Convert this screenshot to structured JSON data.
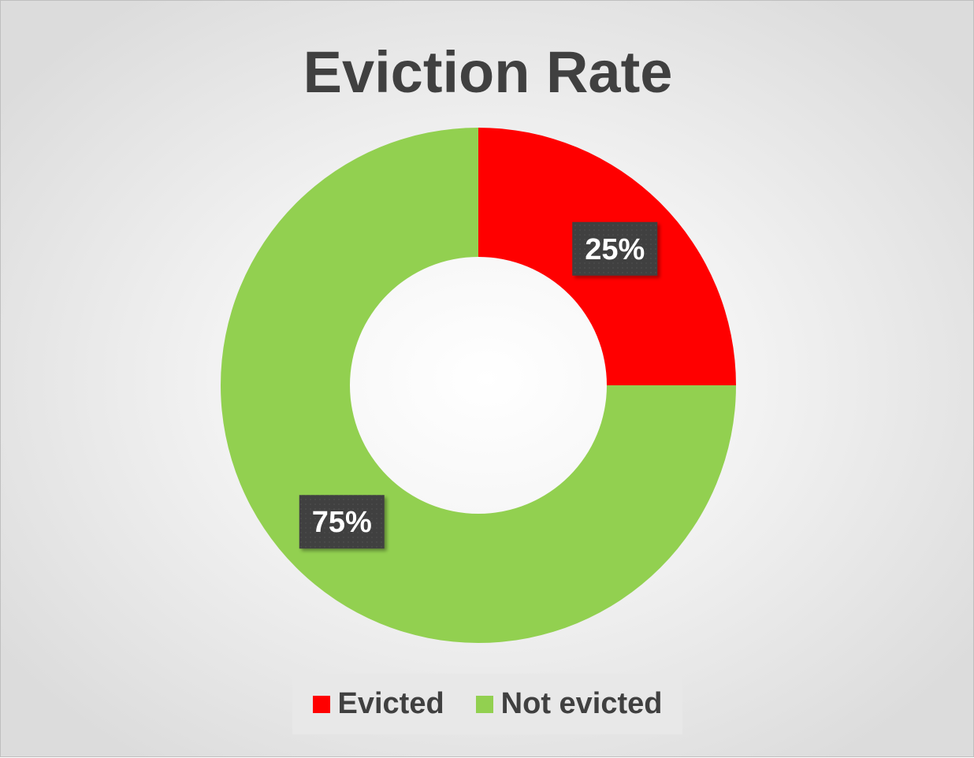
{
  "chart_data": {
    "type": "pie",
    "subtype": "donut",
    "title": "Eviction Rate",
    "categories": [
      "Evicted",
      "Not evicted"
    ],
    "values": [
      25,
      75
    ],
    "labels": [
      "25%",
      "75%"
    ],
    "colors": [
      "#ff0000",
      "#92d050"
    ],
    "legend": {
      "placement": "bottom",
      "entries": [
        "Evicted",
        "Not evicted"
      ]
    },
    "label_box_color": "#3f3f3f"
  }
}
